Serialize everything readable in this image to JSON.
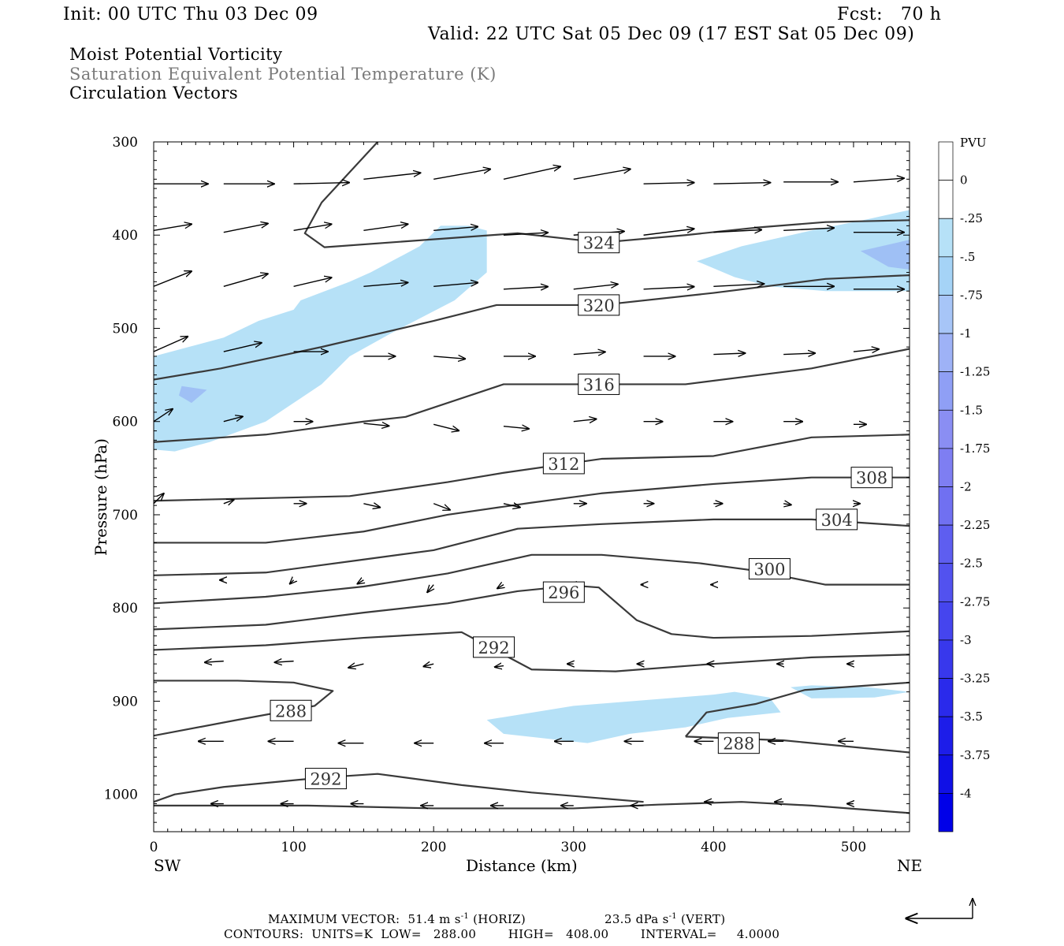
{
  "header": {
    "init": "Init: 00 UTC Thu 03 Dec 09",
    "fcst": "Fcst:   70 h",
    "valid": "Valid: 22 UTC Sat 05 Dec 09 (17 EST Sat 05 Dec 09)"
  },
  "titles": {
    "line1": "Moist Potential Vorticity",
    "line2": "Saturation Equivalent Potential Temperature (K)",
    "line3": "Circulation Vectors"
  },
  "footer": {
    "max_vector": "MAXIMUM VECTOR:  51.4 m s",
    "horiz": "(HORIZ)",
    "vert_value": "23.5 dPa s",
    "vert": "(VERT)",
    "contours": "CONTOURS:  UNITS=K  LOW=   288.00        HIGH=   408.00        INTERVAL=     4.0000",
    "sup": "-1"
  },
  "colors": {
    "background": "#ffffff",
    "contour": "#3a3a3a",
    "pv_fill_light": "#b6e1f7",
    "pv_fill_medium": "#9fc0f5",
    "title2": "#7a7a7a"
  },
  "chart_data": {
    "type": "cross-section",
    "xlabel": "Distance (km)",
    "ylabel": "Pressure (hPa)",
    "xlim": [
      0,
      540
    ],
    "ylim": [
      1040,
      300
    ],
    "x_ticks": [
      "0",
      "100",
      "200",
      "300",
      "400",
      "500"
    ],
    "y_ticks": [
      "300",
      "400",
      "500",
      "600",
      "700",
      "800",
      "900",
      "1000"
    ],
    "x_end_labels": {
      "left": "SW",
      "right": "NE"
    },
    "colorbar": {
      "unit": "PVU",
      "labels": [
        "0",
        "-.25",
        "-.5",
        "-.75",
        "-1",
        "-1.25",
        "-1.5",
        "-1.75",
        "-2",
        "-2.25",
        "-2.5",
        "-2.75",
        "-3",
        "-3.25",
        "-3.5",
        "-3.75",
        "-4"
      ],
      "colors": [
        "#ffffff",
        "#ffffff",
        "#b6e1f7",
        "#a5d3f6",
        "#a7c5f7",
        "#9eb2f6",
        "#8f9ff5",
        "#8a8ef3",
        "#7e7ef2",
        "#7070f1",
        "#5e5ef0",
        "#5252ef",
        "#4545ee",
        "#3838ec",
        "#2a2aeb",
        "#1d1de9",
        "#1010e6",
        "#0000e8"
      ]
    },
    "contour_labels": [
      {
        "label": "324",
        "x": 318,
        "p": 408
      },
      {
        "label": "320",
        "x": 318,
        "p": 475
      },
      {
        "label": "316",
        "x": 318,
        "p": 560
      },
      {
        "label": "312",
        "x": 293,
        "p": 645
      },
      {
        "label": "308",
        "x": 513,
        "p": 660
      },
      {
        "label": "304",
        "x": 488,
        "p": 705
      },
      {
        "label": "300",
        "x": 440,
        "p": 758
      },
      {
        "label": "296",
        "x": 293,
        "p": 783
      },
      {
        "label": "292",
        "x": 243,
        "p": 842
      },
      {
        "label": "288",
        "x": 98,
        "p": 910
      },
      {
        "label": "288",
        "x": 418,
        "p": 945
      },
      {
        "label": "292",
        "x": 123,
        "p": 983
      }
    ],
    "contours": [
      [
        [
          160,
          300
        ],
        [
          120,
          365
        ],
        [
          108,
          398
        ],
        [
          122,
          413
        ],
        [
          260,
          398
        ],
        [
          320,
          408
        ],
        [
          380,
          400
        ],
        [
          430,
          392
        ],
        [
          480,
          386
        ],
        [
          540,
          384
        ]
      ],
      [
        [
          0,
          555
        ],
        [
          48,
          543
        ],
        [
          120,
          520
        ],
        [
          200,
          492
        ],
        [
          245,
          475
        ],
        [
          320,
          475
        ],
        [
          400,
          462
        ],
        [
          480,
          447
        ],
        [
          540,
          443
        ]
      ],
      [
        [
          0,
          622
        ],
        [
          80,
          614
        ],
        [
          150,
          600
        ],
        [
          180,
          595
        ],
        [
          250,
          560
        ],
        [
          320,
          560
        ],
        [
          380,
          560
        ],
        [
          470,
          543
        ],
        [
          540,
          522
        ]
      ],
      [
        [
          0,
          685
        ],
        [
          140,
          680
        ],
        [
          210,
          665
        ],
        [
          250,
          655
        ],
        [
          320,
          640
        ],
        [
          400,
          637
        ],
        [
          470,
          617
        ],
        [
          540,
          614
        ]
      ],
      [
        [
          0,
          730
        ],
        [
          80,
          730
        ],
        [
          150,
          718
        ],
        [
          210,
          700
        ],
        [
          270,
          687
        ],
        [
          320,
          677
        ],
        [
          400,
          667
        ],
        [
          470,
          660
        ],
        [
          540,
          660
        ]
      ],
      [
        [
          0,
          765
        ],
        [
          80,
          762
        ],
        [
          150,
          748
        ],
        [
          200,
          738
        ],
        [
          260,
          715
        ],
        [
          320,
          710
        ],
        [
          400,
          705
        ],
        [
          470,
          705
        ],
        [
          540,
          712
        ]
      ],
      [
        [
          0,
          795
        ],
        [
          80,
          788
        ],
        [
          150,
          777
        ],
        [
          210,
          763
        ],
        [
          270,
          743
        ],
        [
          320,
          743
        ],
        [
          390,
          752
        ],
        [
          430,
          760
        ],
        [
          480,
          775
        ],
        [
          540,
          775
        ]
      ],
      [
        [
          0,
          823
        ],
        [
          80,
          818
        ],
        [
          150,
          805
        ],
        [
          210,
          795
        ],
        [
          260,
          782
        ],
        [
          300,
          776
        ],
        [
          318,
          778
        ],
        [
          345,
          813
        ],
        [
          370,
          828
        ],
        [
          400,
          832
        ],
        [
          470,
          830
        ],
        [
          540,
          825
        ]
      ],
      [
        [
          0,
          845
        ],
        [
          80,
          840
        ],
        [
          150,
          832
        ],
        [
          220,
          826
        ],
        [
          240,
          842
        ],
        [
          270,
          866
        ],
        [
          330,
          868
        ],
        [
          400,
          860
        ],
        [
          470,
          853
        ],
        [
          540,
          850
        ]
      ],
      [
        [
          0,
          878
        ],
        [
          60,
          878
        ],
        [
          100,
          880
        ],
        [
          128,
          889
        ],
        [
          115,
          905
        ],
        [
          60,
          920
        ],
        [
          0,
          937
        ]
      ],
      [
        [
          380,
          938
        ],
        [
          395,
          912
        ],
        [
          430,
          903
        ],
        [
          465,
          888
        ],
        [
          540,
          880
        ]
      ],
      [
        [
          380,
          938
        ],
        [
          450,
          942
        ],
        [
          540,
          955
        ]
      ],
      [
        [
          0,
          1008
        ],
        [
          15,
          1000
        ],
        [
          50,
          992
        ],
        [
          120,
          982
        ],
        [
          160,
          978
        ],
        [
          220,
          990
        ],
        [
          270,
          998
        ],
        [
          350,
          1008
        ]
      ],
      [
        [
          0,
          1012
        ],
        [
          110,
          1012
        ],
        [
          200,
          1015
        ],
        [
          300,
          1015
        ],
        [
          360,
          1011
        ],
        [
          420,
          1008
        ],
        [
          470,
          1012
        ],
        [
          540,
          1020
        ]
      ]
    ],
    "pv_regions": [
      {
        "level": "-.5",
        "points": [
          [
            0,
            530
          ],
          [
            25,
            520
          ],
          [
            50,
            510
          ],
          [
            75,
            492
          ],
          [
            100,
            480
          ],
          [
            105,
            470
          ],
          [
            140,
            450
          ],
          [
            155,
            440
          ],
          [
            190,
            412
          ],
          [
            205,
            390
          ],
          [
            225,
            390
          ],
          [
            238,
            395
          ],
          [
            238,
            440
          ],
          [
            215,
            470
          ],
          [
            170,
            505
          ],
          [
            140,
            530
          ],
          [
            120,
            560
          ],
          [
            80,
            600
          ],
          [
            40,
            622
          ],
          [
            15,
            632
          ],
          [
            0,
            630
          ]
        ]
      },
      {
        "level": "-.5",
        "points": [
          [
            388,
            428
          ],
          [
            420,
            412
          ],
          [
            470,
            395
          ],
          [
            510,
            383
          ],
          [
            540,
            373
          ],
          [
            540,
            460
          ],
          [
            480,
            460
          ],
          [
            440,
            455
          ],
          [
            415,
            445
          ]
        ]
      },
      {
        "level": "-.5",
        "points": [
          [
            238,
            920
          ],
          [
            300,
            905
          ],
          [
            400,
            893
          ],
          [
            415,
            890
          ],
          [
            440,
            896
          ],
          [
            448,
            912
          ],
          [
            410,
            918
          ],
          [
            380,
            928
          ],
          [
            340,
            935
          ],
          [
            310,
            945
          ],
          [
            250,
            935
          ]
        ]
      },
      {
        "level": "-.5",
        "points": [
          [
            455,
            885
          ],
          [
            470,
            883
          ],
          [
            510,
            885
          ],
          [
            540,
            890
          ],
          [
            515,
            896
          ],
          [
            470,
            897
          ]
        ]
      },
      {
        "level": "-.75",
        "points": [
          [
            20,
            562
          ],
          [
            38,
            566
          ],
          [
            27,
            580
          ],
          [
            18,
            572
          ]
        ]
      },
      {
        "level": "-.75",
        "points": [
          [
            505,
            417
          ],
          [
            540,
            405
          ],
          [
            540,
            437
          ],
          [
            525,
            434
          ]
        ]
      }
    ],
    "vectors": [
      [
        0,
        345,
        43,
        0
      ],
      [
        50,
        345,
        40,
        0
      ],
      [
        100,
        345,
        44,
        -1
      ],
      [
        150,
        340,
        45,
        -5
      ],
      [
        200,
        340,
        45,
        -8
      ],
      [
        250,
        340,
        45,
        -10
      ],
      [
        300,
        340,
        45,
        -8
      ],
      [
        350,
        345,
        40,
        -1
      ],
      [
        400,
        345,
        45,
        -1
      ],
      [
        450,
        343,
        43,
        0
      ],
      [
        500,
        343,
        40,
        -3
      ],
      [
        0,
        395,
        30,
        -5
      ],
      [
        50,
        397,
        35,
        -7
      ],
      [
        100,
        395,
        30,
        -5
      ],
      [
        150,
        395,
        35,
        -5
      ],
      [
        200,
        395,
        35,
        -3
      ],
      [
        250,
        400,
        35,
        -2
      ],
      [
        300,
        400,
        40,
        -3
      ],
      [
        350,
        400,
        40,
        -5
      ],
      [
        400,
        397,
        38,
        -2
      ],
      [
        450,
        395,
        40,
        -2
      ],
      [
        500,
        397,
        40,
        0
      ],
      [
        0,
        455,
        30,
        -12
      ],
      [
        50,
        455,
        35,
        -10
      ],
      [
        100,
        455,
        30,
        -7
      ],
      [
        150,
        455,
        35,
        -3
      ],
      [
        200,
        455,
        35,
        -3
      ],
      [
        250,
        458,
        35,
        -2
      ],
      [
        300,
        458,
        35,
        -4
      ],
      [
        350,
        458,
        40,
        -2
      ],
      [
        400,
        455,
        40,
        -2
      ],
      [
        450,
        455,
        40,
        0
      ],
      [
        500,
        458,
        40,
        0
      ],
      [
        0,
        525,
        27,
        -12
      ],
      [
        50,
        525,
        30,
        -7
      ],
      [
        100,
        525,
        27,
        0
      ],
      [
        150,
        530,
        25,
        0
      ],
      [
        200,
        530,
        25,
        2
      ],
      [
        250,
        530,
        25,
        0
      ],
      [
        300,
        528,
        25,
        -2
      ],
      [
        350,
        530,
        25,
        0
      ],
      [
        400,
        528,
        25,
        -1
      ],
      [
        450,
        528,
        25,
        -1
      ],
      [
        500,
        525,
        20,
        -2
      ],
      [
        0,
        600,
        15,
        -10
      ],
      [
        50,
        600,
        15,
        -4
      ],
      [
        100,
        600,
        15,
        0
      ],
      [
        150,
        602,
        20,
        2
      ],
      [
        200,
        603,
        20,
        5
      ],
      [
        250,
        605,
        20,
        2
      ],
      [
        300,
        600,
        18,
        -2
      ],
      [
        350,
        600,
        15,
        0
      ],
      [
        400,
        600,
        15,
        0
      ],
      [
        450,
        600,
        15,
        0
      ],
      [
        500,
        603,
        10,
        0
      ],
      [
        0,
        688,
        8,
        -8
      ],
      [
        50,
        688,
        8,
        -3
      ],
      [
        100,
        688,
        10,
        0
      ],
      [
        150,
        688,
        13,
        3
      ],
      [
        200,
        688,
        13,
        5
      ],
      [
        250,
        688,
        13,
        3
      ],
      [
        300,
        688,
        10,
        0
      ],
      [
        350,
        688,
        8,
        0
      ],
      [
        400,
        688,
        7,
        0
      ],
      [
        450,
        688,
        6,
        1
      ],
      [
        500,
        688,
        5,
        0
      ],
      [
        50,
        770,
        -3,
        0
      ],
      [
        100,
        770,
        -3,
        3
      ],
      [
        150,
        770,
        -5,
        3
      ],
      [
        200,
        775,
        -5,
        6
      ],
      [
        250,
        775,
        -5,
        3
      ],
      [
        300,
        775,
        -3,
        0
      ],
      [
        350,
        775,
        -2,
        0
      ],
      [
        400,
        775,
        -2,
        0
      ],
      [
        50,
        857,
        -15,
        1
      ],
      [
        100,
        857,
        -15,
        1
      ],
      [
        150,
        860,
        -12,
        3
      ],
      [
        200,
        860,
        -8,
        2
      ],
      [
        250,
        862,
        -7,
        1
      ],
      [
        300,
        860,
        -5,
        0
      ],
      [
        350,
        860,
        -5,
        0
      ],
      [
        400,
        860,
        -5,
        0
      ],
      [
        450,
        860,
        -5,
        0
      ],
      [
        500,
        860,
        -5,
        0
      ],
      [
        50,
        943,
        -20,
        0
      ],
      [
        100,
        943,
        -20,
        0
      ],
      [
        150,
        945,
        -20,
        0
      ],
      [
        200,
        945,
        -15,
        0
      ],
      [
        250,
        945,
        -15,
        0
      ],
      [
        300,
        943,
        -15,
        0
      ],
      [
        350,
        943,
        -15,
        0
      ],
      [
        400,
        943,
        -15,
        0
      ],
      [
        450,
        943,
        -12,
        0
      ],
      [
        500,
        943,
        -12,
        0
      ],
      [
        50,
        1010,
        -10,
        0
      ],
      [
        100,
        1010,
        -10,
        0
      ],
      [
        150,
        1010,
        -10,
        0
      ],
      [
        200,
        1012,
        -10,
        0
      ],
      [
        250,
        1012,
        -10,
        0
      ],
      [
        300,
        1012,
        -10,
        0
      ],
      [
        350,
        1012,
        -10,
        0
      ],
      [
        400,
        1008,
        -7,
        0
      ],
      [
        450,
        1008,
        -7,
        0
      ],
      [
        500,
        1010,
        -5,
        0
      ]
    ]
  }
}
